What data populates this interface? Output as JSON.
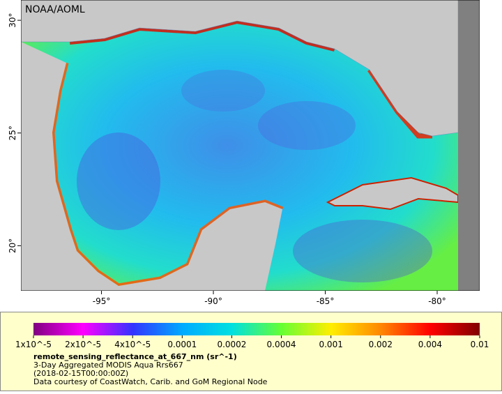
{
  "map": {
    "credit": "NOAA/AOML",
    "xlim": [
      -98.6,
      -78.1
    ],
    "ylim": [
      18.0,
      30.9
    ],
    "xticks": [
      {
        "value": -95,
        "label": "-95°"
      },
      {
        "value": -90,
        "label": "-90°"
      },
      {
        "value": -85,
        "label": "-85°"
      },
      {
        "value": -80,
        "label": "-80°"
      }
    ],
    "yticks": [
      {
        "value": 20,
        "label": "20°"
      },
      {
        "value": 25,
        "label": "25°"
      },
      {
        "value": 30,
        "label": "30°"
      }
    ]
  },
  "colorbar": {
    "colors": [
      "#800080",
      "#ff00ff",
      "#3333ff",
      "#00aaff",
      "#00e0e0",
      "#66ff33",
      "#ffee00",
      "#ff8800",
      "#ff0000",
      "#800000"
    ],
    "ticks": [
      {
        "value": 1e-05,
        "label": "1x10^-5"
      },
      {
        "value": 2e-05,
        "label": "2x10^-5"
      },
      {
        "value": 4e-05,
        "label": "4x10^-5"
      },
      0.0001,
      0.0002,
      0.0004,
      0.001,
      0.002,
      0.004,
      0.01
    ]
  },
  "legend": {
    "variable": "remote_sensing_reflectance_at_667_nm (sr^-1)",
    "description": "3-Day Aggregated MODIS Aqua Rrs667",
    "time": "(2018-02-15T00:00:00Z)",
    "source": "Data courtesy of CoastWatch, Carib. and GoM Regional Node"
  }
}
